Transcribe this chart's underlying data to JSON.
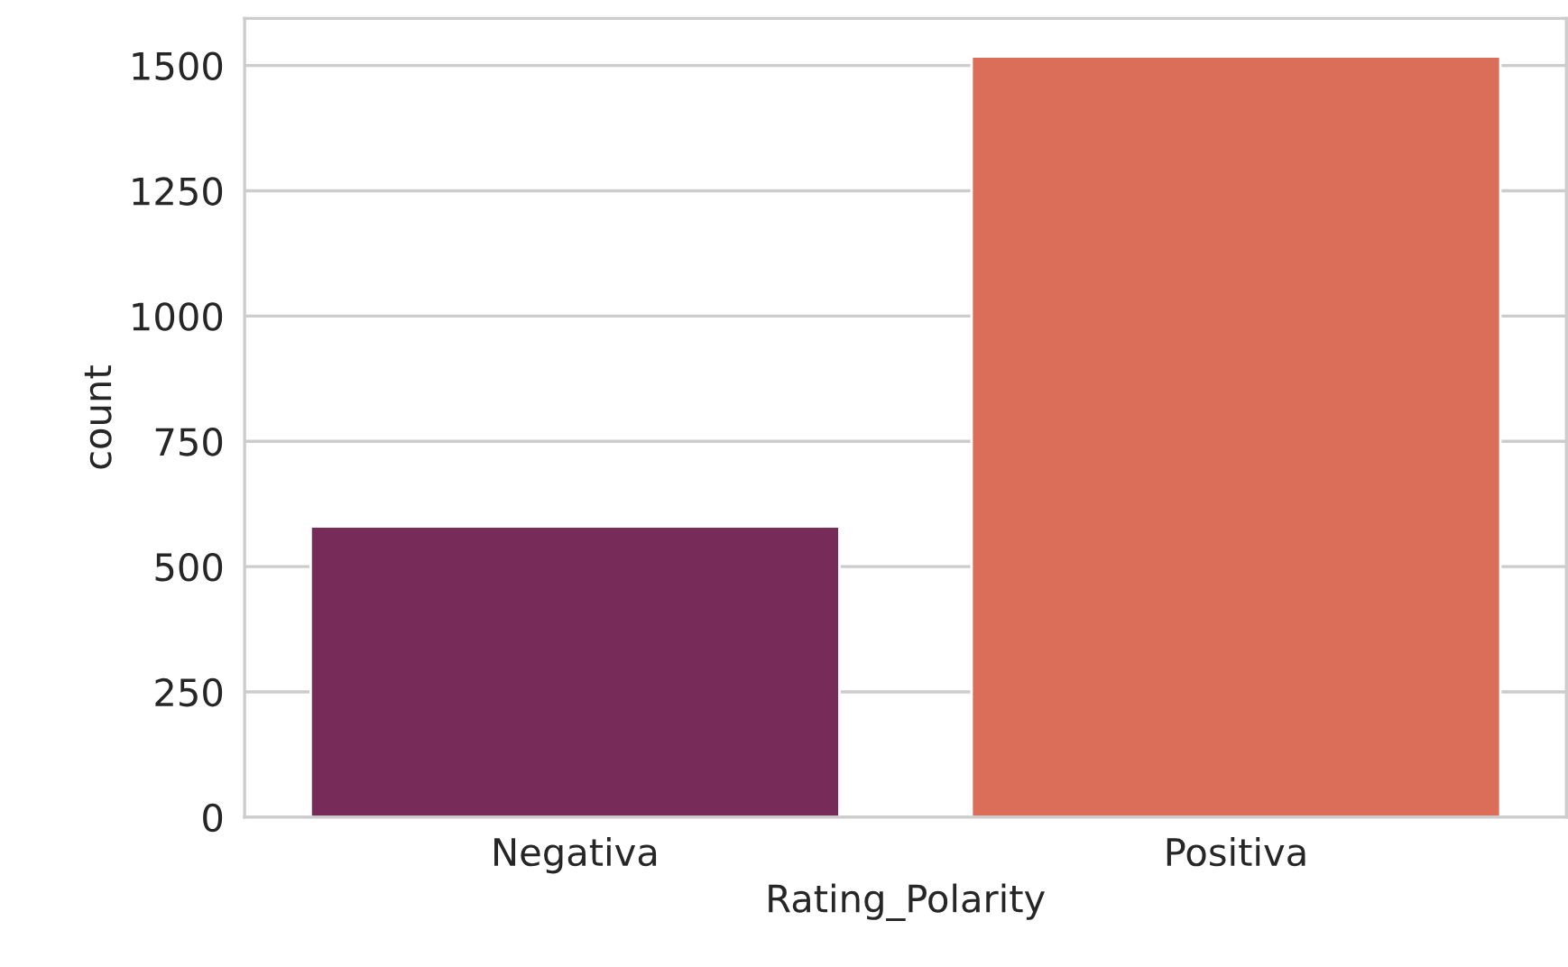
{
  "chart_data": {
    "type": "bar",
    "xlabel": "Rating_Polarity",
    "ylabel": "count",
    "categories": [
      "Negativa",
      "Positiva"
    ],
    "values": [
      580,
      1518
    ],
    "colors": [
      "#772b58",
      "#db6e59"
    ],
    "ylim": [
      0,
      1594
    ],
    "yticks": [
      0,
      250,
      500,
      750,
      1000,
      1250,
      1500
    ],
    "grid": "y",
    "legend": false
  }
}
